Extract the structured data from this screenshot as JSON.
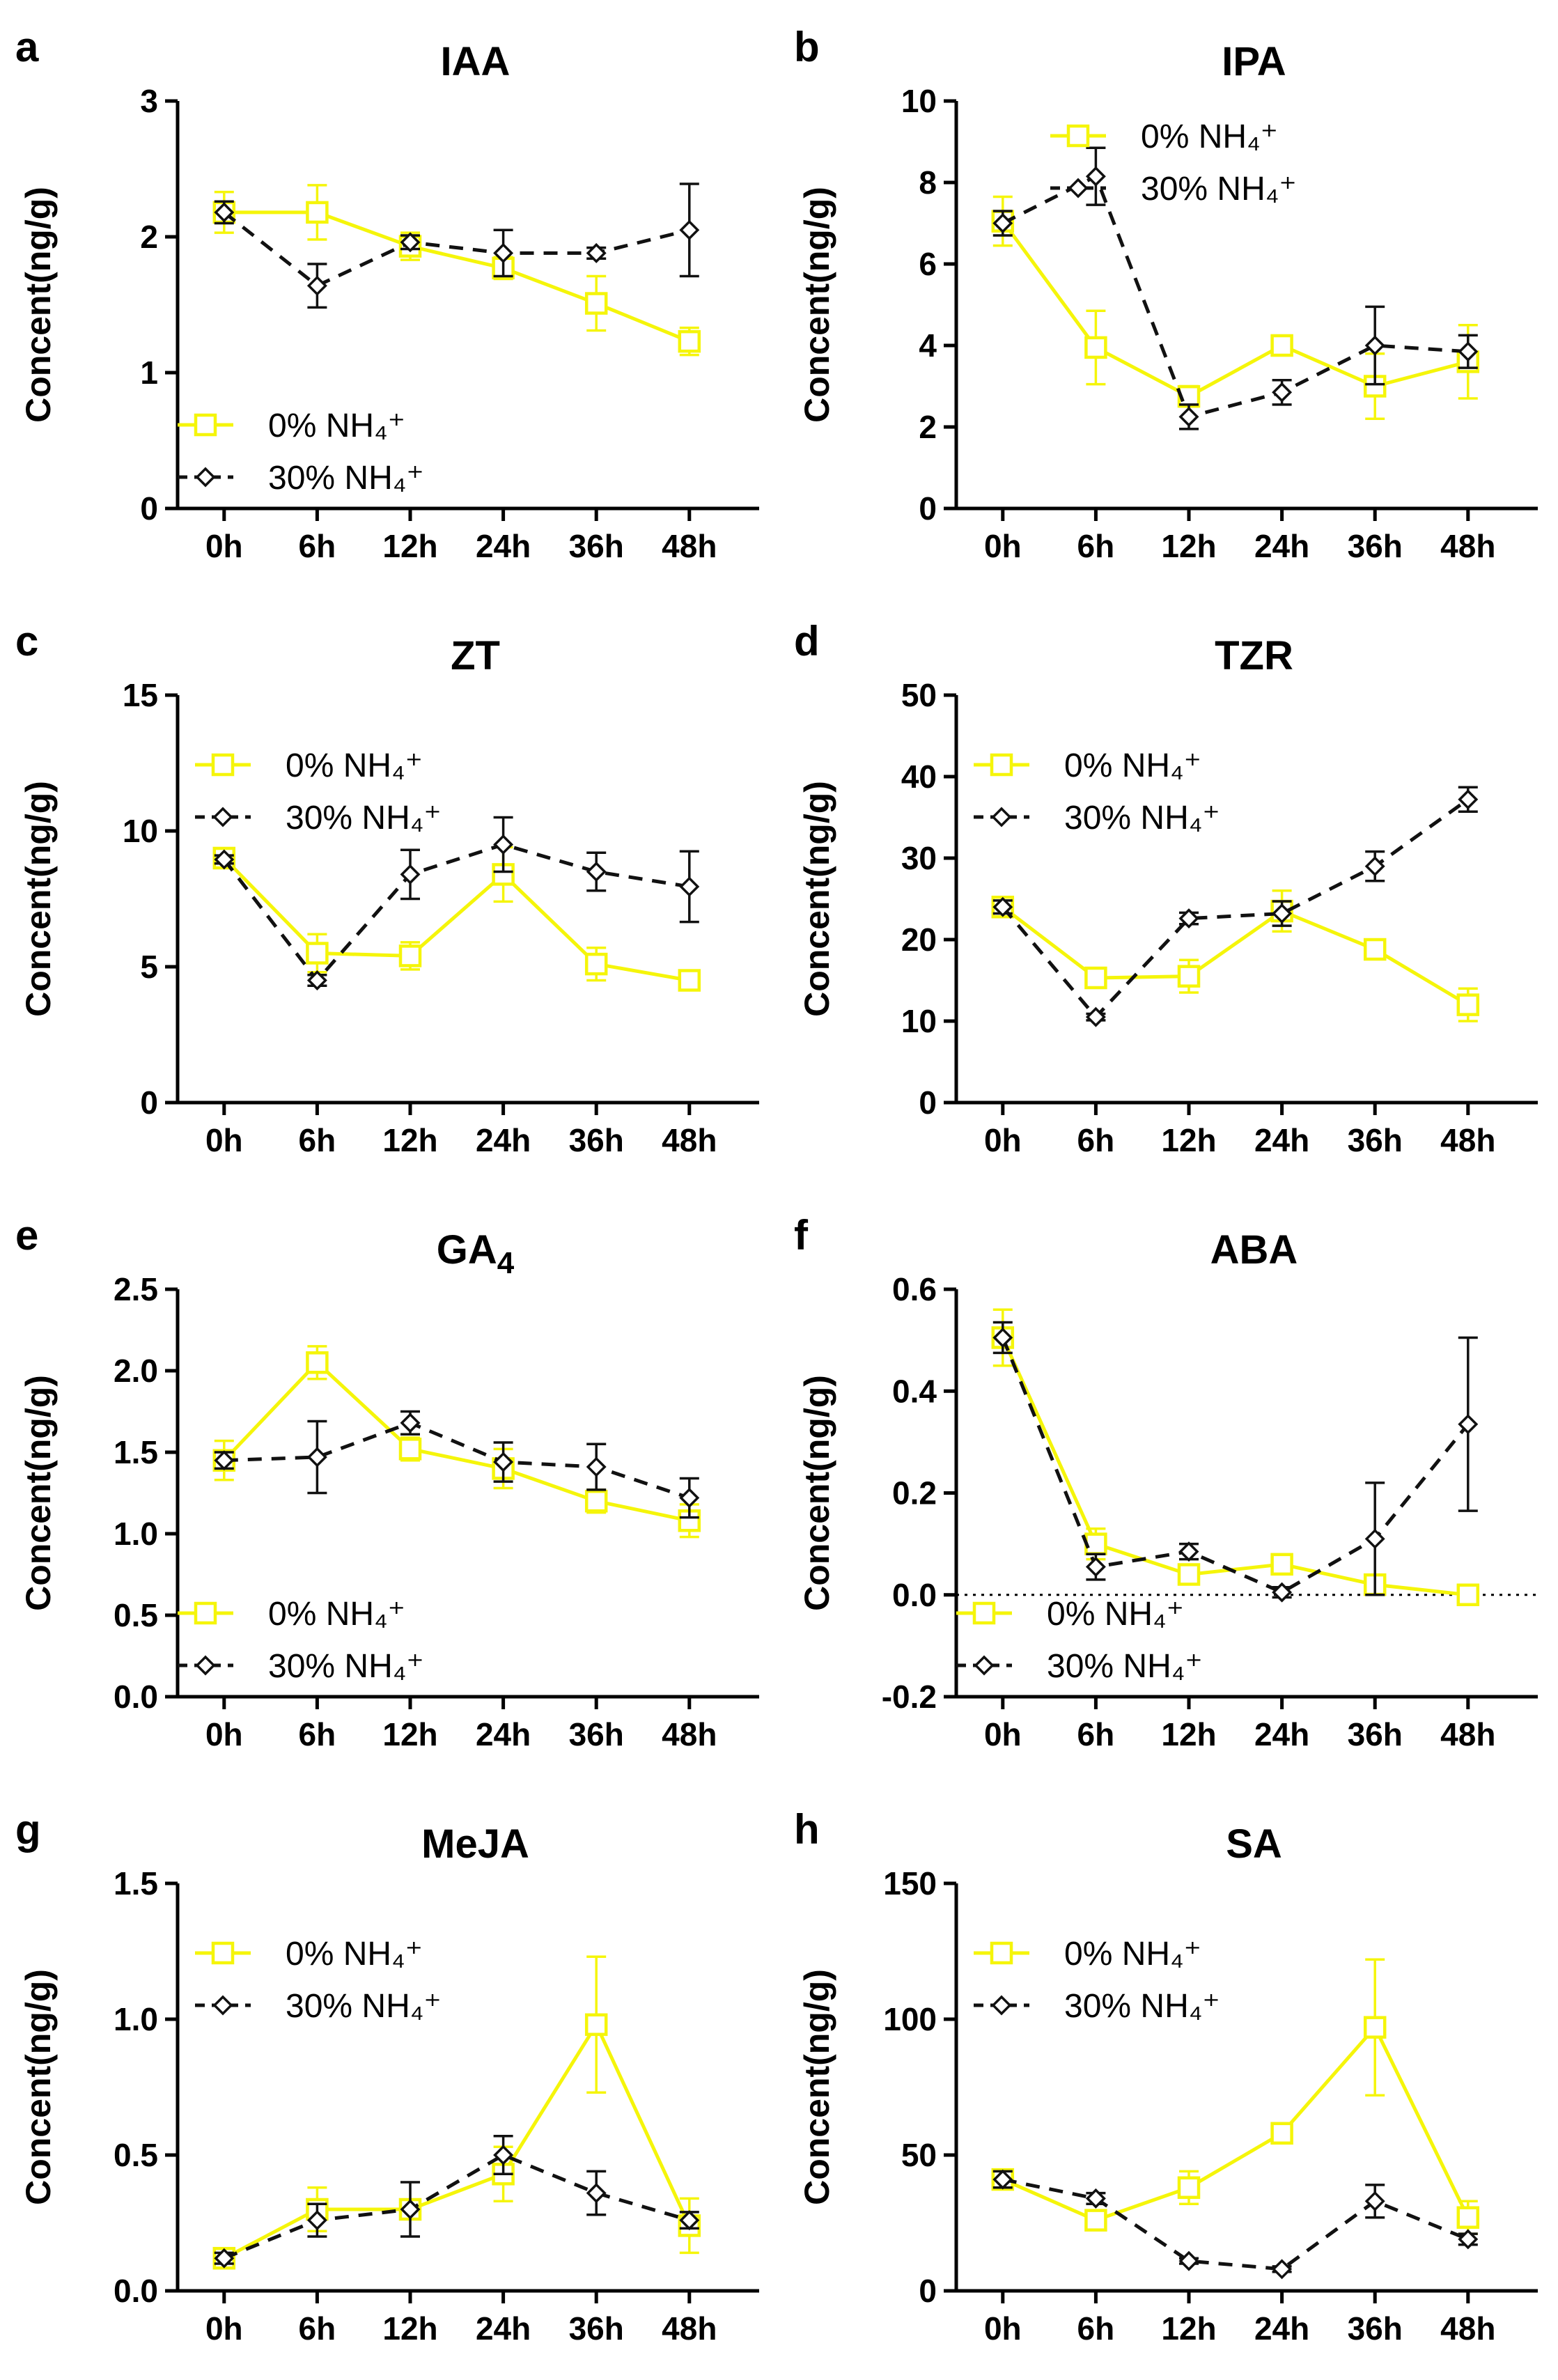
{
  "figure": {
    "panels": [
      "a",
      "b",
      "c",
      "d",
      "e",
      "f",
      "g",
      "h"
    ]
  },
  "chart_data": [
    {
      "type": "line",
      "panel": "a",
      "title": "IAA",
      "ylabel": "Concent(ng/g)",
      "xlabel": "",
      "categories": [
        "0h",
        "6h",
        "12h",
        "24h",
        "36h",
        "48h"
      ],
      "ylim": [
        0,
        3
      ],
      "yticks": [
        0,
        1,
        2,
        3
      ],
      "ytick_labels": [
        "0",
        "1",
        "2",
        "3"
      ],
      "legend_position": "bottom-left",
      "series": [
        {
          "name": "0% NH₄⁺",
          "color": "#f5f50a",
          "marker": "square",
          "dash": "solid",
          "values": [
            2.18,
            2.18,
            1.93,
            1.77,
            1.51,
            1.23
          ],
          "errors": [
            0.15,
            0.2,
            0.1,
            0.08,
            0.2,
            0.1
          ]
        },
        {
          "name": "30% NH₄⁺",
          "color": "#111111",
          "marker": "diamond",
          "dash": "dashed",
          "values": [
            2.18,
            1.64,
            1.96,
            1.88,
            1.88,
            2.05
          ],
          "errors": [
            0.08,
            0.16,
            0.05,
            0.17,
            0.04,
            0.34
          ]
        }
      ]
    },
    {
      "type": "line",
      "panel": "b",
      "title": "IPA",
      "ylabel": "Concent(ng/g)",
      "xlabel": "",
      "categories": [
        "0h",
        "6h",
        "12h",
        "24h",
        "36h",
        "48h"
      ],
      "ylim": [
        0,
        10
      ],
      "yticks": [
        0,
        2,
        4,
        6,
        8,
        10
      ],
      "ytick_labels": [
        "0",
        "2",
        "4",
        "6",
        "8",
        "10"
      ],
      "legend_position": "top-right",
      "series": [
        {
          "name": "0% NH₄⁺",
          "color": "#f5f50a",
          "marker": "square",
          "dash": "solid",
          "values": [
            7.05,
            3.95,
            2.75,
            4.0,
            3.0,
            3.6
          ],
          "errors": [
            0.6,
            0.9,
            0.25,
            0.15,
            0.8,
            0.9
          ]
        },
        {
          "name": "30% NH₄⁺",
          "color": "#111111",
          "marker": "diamond",
          "dash": "dashed",
          "values": [
            7.0,
            8.15,
            2.25,
            2.85,
            4.0,
            3.85
          ],
          "errors": [
            0.3,
            0.7,
            0.3,
            0.3,
            0.95,
            0.4
          ]
        }
      ]
    },
    {
      "type": "line",
      "panel": "c",
      "title": "ZT",
      "ylabel": "Concent(ng/g)",
      "xlabel": "",
      "categories": [
        "0h",
        "6h",
        "12h",
        "24h",
        "36h",
        "48h"
      ],
      "ylim": [
        0,
        15
      ],
      "yticks": [
        0,
        5,
        10,
        15
      ],
      "ytick_labels": [
        "0",
        "5",
        "10",
        "15"
      ],
      "legend_position": "top-left",
      "series": [
        {
          "name": "0% NH₄⁺",
          "color": "#f5f50a",
          "marker": "square",
          "dash": "solid",
          "values": [
            9.0,
            5.5,
            5.4,
            8.4,
            5.1,
            4.5
          ],
          "errors": [
            0.2,
            0.7,
            0.5,
            1.0,
            0.6,
            0.3
          ]
        },
        {
          "name": "30% NH₄⁺",
          "color": "#111111",
          "marker": "diamond",
          "dash": "dashed",
          "values": [
            8.95,
            4.5,
            8.4,
            9.5,
            8.5,
            7.95
          ],
          "errors": [
            0.15,
            0.2,
            0.9,
            1.0,
            0.7,
            1.3
          ]
        }
      ]
    },
    {
      "type": "line",
      "panel": "d",
      "title": "TZR",
      "ylabel": "Concent(ng/g)",
      "xlabel": "",
      "categories": [
        "0h",
        "6h",
        "12h",
        "24h",
        "36h",
        "48h"
      ],
      "ylim": [
        0,
        50
      ],
      "yticks": [
        0,
        10,
        20,
        30,
        40,
        50
      ],
      "ytick_labels": [
        "0",
        "10",
        "20",
        "30",
        "40",
        "50"
      ],
      "legend_position": "top-left",
      "series": [
        {
          "name": "0% NH₄⁺",
          "color": "#f5f50a",
          "marker": "square",
          "dash": "solid",
          "values": [
            24.0,
            15.3,
            15.5,
            23.5,
            18.8,
            12.0
          ],
          "errors": [
            1.0,
            1.2,
            2.0,
            2.5,
            0.7,
            2.0
          ]
        },
        {
          "name": "30% NH₄⁺",
          "color": "#111111",
          "marker": "diamond",
          "dash": "dashed",
          "values": [
            24.0,
            10.5,
            22.6,
            23.2,
            29.0,
            37.2
          ],
          "errors": [
            0.8,
            0.4,
            0.7,
            1.5,
            1.8,
            1.5
          ]
        }
      ]
    },
    {
      "type": "line",
      "panel": "e",
      "title": "GA",
      "title_subscript": "4",
      "ylabel": "Concent(ng/g)",
      "xlabel": "",
      "categories": [
        "0h",
        "6h",
        "12h",
        "24h",
        "36h",
        "48h"
      ],
      "ylim": [
        0,
        2.5
      ],
      "yticks": [
        0,
        0.5,
        1.0,
        1.5,
        2.0,
        2.5
      ],
      "ytick_labels": [
        "0.0",
        "0.5",
        "1.0",
        "1.5",
        "2.0",
        "2.5"
      ],
      "legend_position": "bottom-left",
      "series": [
        {
          "name": "0% NH₄⁺",
          "color": "#f5f50a",
          "marker": "square",
          "dash": "solid",
          "values": [
            1.45,
            2.05,
            1.52,
            1.4,
            1.2,
            1.08
          ],
          "errors": [
            0.12,
            0.1,
            0.07,
            0.12,
            0.07,
            0.1
          ]
        },
        {
          "name": "30% NH₄⁺",
          "color": "#111111",
          "marker": "diamond",
          "dash": "dashed",
          "values": [
            1.45,
            1.47,
            1.68,
            1.44,
            1.41,
            1.22
          ],
          "errors": [
            0.05,
            0.22,
            0.07,
            0.12,
            0.14,
            0.12
          ]
        }
      ]
    },
    {
      "type": "line",
      "panel": "f",
      "title": "ABA",
      "ylabel": "Concent(ng/g)",
      "xlabel": "",
      "categories": [
        "0h",
        "6h",
        "12h",
        "24h",
        "36h",
        "48h"
      ],
      "ylim": [
        -0.2,
        0.6
      ],
      "yticks": [
        -0.2,
        0,
        0.2,
        0.4,
        0.6
      ],
      "ytick_labels": [
        "-0.2",
        "0.0",
        "0.2",
        "0.4",
        "0.6"
      ],
      "zero_line": true,
      "legend_position": "bottom-left",
      "series": [
        {
          "name": "0% NH₄⁺",
          "color": "#f5f50a",
          "marker": "square",
          "dash": "solid",
          "values": [
            0.505,
            0.1,
            0.04,
            0.06,
            0.02,
            0.0
          ],
          "errors": [
            0.055,
            0.03,
            0.015,
            0.015,
            0.015,
            0.01
          ]
        },
        {
          "name": "30% NH₄⁺",
          "color": "#111111",
          "marker": "diamond",
          "dash": "dashed",
          "values": [
            0.505,
            0.055,
            0.085,
            0.005,
            0.11,
            0.335
          ],
          "errors": [
            0.03,
            0.025,
            0.015,
            0.01,
            0.11,
            0.17
          ]
        }
      ]
    },
    {
      "type": "line",
      "panel": "g",
      "title": "MeJA",
      "ylabel": "Concent(ng/g)",
      "xlabel": "",
      "categories": [
        "0h",
        "6h",
        "12h",
        "24h",
        "36h",
        "48h"
      ],
      "ylim": [
        0,
        1.5
      ],
      "yticks": [
        0,
        0.5,
        1.0,
        1.5
      ],
      "ytick_labels": [
        "0.0",
        "0.5",
        "1.0",
        "1.5"
      ],
      "legend_position": "top-left",
      "series": [
        {
          "name": "0% NH₄⁺",
          "color": "#f5f50a",
          "marker": "square",
          "dash": "solid",
          "values": [
            0.12,
            0.3,
            0.3,
            0.43,
            0.98,
            0.24
          ],
          "errors": [
            0.02,
            0.08,
            0.03,
            0.1,
            0.25,
            0.1
          ]
        },
        {
          "name": "30% NH₄⁺",
          "color": "#111111",
          "marker": "diamond",
          "dash": "dashed",
          "values": [
            0.12,
            0.26,
            0.3,
            0.5,
            0.36,
            0.26
          ],
          "errors": [
            0.02,
            0.06,
            0.1,
            0.07,
            0.08,
            0.03
          ]
        }
      ]
    },
    {
      "type": "line",
      "panel": "h",
      "title": "SA",
      "ylabel": "Concent(ng/g)",
      "xlabel": "",
      "categories": [
        "0h",
        "6h",
        "12h",
        "24h",
        "36h",
        "48h"
      ],
      "ylim": [
        0,
        150
      ],
      "yticks": [
        0,
        50,
        100,
        150
      ],
      "ytick_labels": [
        "0",
        "50",
        "100",
        "150"
      ],
      "legend_position": "top-left",
      "series": [
        {
          "name": "0% NH₄⁺",
          "color": "#f5f50a",
          "marker": "square",
          "dash": "solid",
          "values": [
            41,
            26,
            38,
            58,
            97,
            27
          ],
          "errors": [
            3,
            3,
            6,
            3,
            25,
            6
          ]
        },
        {
          "name": "30% NH₄⁺",
          "color": "#111111",
          "marker": "diamond",
          "dash": "dashed",
          "values": [
            41,
            34,
            11,
            8,
            33,
            19
          ],
          "errors": [
            3,
            2,
            1,
            1,
            6,
            2
          ]
        }
      ]
    }
  ]
}
